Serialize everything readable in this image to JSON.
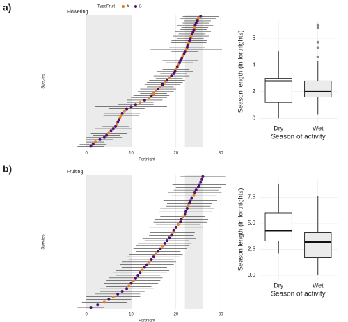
{
  "chart_data": [
    {
      "type": "dotrange",
      "panel_label": "a)",
      "title": "Flowering",
      "xlabel": "Fortnight",
      "ylabel": "Species",
      "legend_title": "TypeFruit",
      "series": [
        {
          "name": "A",
          "color": "#e8801e"
        },
        {
          "name": "B",
          "color": "#4b1168"
        }
      ],
      "xlim": [
        -5,
        32
      ],
      "xticks": [
        0,
        10,
        20,
        30
      ],
      "bands": [
        [
          0,
          10
        ],
        [
          22,
          26
        ]
      ],
      "grid": true,
      "categories": [
        null,
        null,
        null,
        null,
        null,
        null,
        null,
        null,
        null,
        null,
        null,
        null,
        null,
        null,
        null,
        null,
        null,
        null,
        null,
        null,
        null,
        null,
        null,
        null,
        null,
        null,
        null,
        null,
        null,
        null,
        null,
        null,
        null,
        null,
        null,
        null,
        null,
        null,
        null,
        null,
        null,
        null,
        null,
        null,
        null,
        null,
        null,
        null,
        null,
        null,
        null,
        null,
        null,
        null,
        null,
        null,
        null,
        null,
        null,
        null
      ],
      "values": [
        25.5,
        25,
        24.8,
        24.5,
        24.3,
        24.2,
        24,
        23.8,
        23.6,
        23.4,
        23.2,
        23,
        22.8,
        22.6,
        22.5,
        22.3,
        22,
        21.8,
        21.5,
        21.3,
        21,
        20.8,
        20.5,
        20.3,
        20,
        19.8,
        19.5,
        19,
        18.5,
        18,
        17.5,
        17,
        16.5,
        16,
        15.5,
        15,
        14.5,
        14,
        13,
        12,
        11,
        10,
        9,
        8.5,
        8,
        7.8,
        7.5,
        7.3,
        7,
        6.8,
        6.5,
        6,
        5.5,
        5,
        4.5,
        4,
        3,
        2,
        1.5,
        1
      ],
      "errors": [
        4,
        4,
        3,
        3,
        4,
        3,
        3,
        4,
        3,
        4,
        3,
        4,
        4,
        3,
        4,
        8,
        3,
        4,
        4,
        3,
        4,
        3,
        4,
        3,
        3,
        4,
        3,
        4,
        3,
        4,
        4,
        4,
        3,
        4,
        4,
        3,
        4,
        4,
        4,
        3,
        4,
        8,
        4,
        3,
        4,
        4,
        3,
        4,
        4,
        4,
        3,
        4,
        4,
        4,
        3,
        4,
        3,
        2,
        3,
        3
      ],
      "group": [
        1,
        0,
        1,
        1,
        1,
        0,
        1,
        1,
        1,
        0,
        1,
        1,
        0,
        1,
        1,
        0,
        1,
        1,
        0,
        1,
        1,
        1,
        0,
        1,
        0,
        1,
        1,
        1,
        0,
        1,
        0,
        1,
        0,
        1,
        0,
        0,
        1,
        0,
        1,
        0,
        1,
        1,
        1,
        0,
        1,
        0,
        0,
        1,
        1,
        0,
        1,
        1,
        1,
        0,
        1,
        1,
        1,
        0,
        1,
        1
      ]
    },
    {
      "type": "box",
      "xlabel": "Season of activity",
      "ylabel": "Season length (in fortnights)",
      "categories": [
        "Dry",
        "Wet"
      ],
      "colors": [
        "#ffffff",
        "#ebebeb"
      ],
      "ylim": [
        -0.3,
        7.3
      ],
      "yticks": [
        0,
        2,
        4,
        6
      ],
      "grid": true,
      "min": [
        0,
        0.3
      ],
      "q1": [
        1.2,
        1.6
      ],
      "median": [
        2.8,
        2
      ],
      "q3": [
        3,
        2.8
      ],
      "max": [
        5,
        4.3
      ],
      "outliers": [
        [],
        [
          7,
          6.8,
          5.7,
          5.3,
          4.6
        ]
      ]
    },
    {
      "type": "dotrange",
      "panel_label": "b)",
      "title": "Fruiting",
      "xlabel": "Fortnight",
      "ylabel": "Species",
      "series": [
        {
          "name": "A",
          "color": "#e8801e"
        },
        {
          "name": "B",
          "color": "#4b1168"
        }
      ],
      "xlim": [
        -5,
        32
      ],
      "xticks": [
        0,
        10,
        20,
        30
      ],
      "bands": [
        [
          0,
          10
        ],
        [
          22,
          26
        ]
      ],
      "grid": true,
      "categories": [
        null,
        null,
        null,
        null,
        null,
        null,
        null,
        null,
        null,
        null,
        null,
        null,
        null,
        null,
        null,
        null,
        null,
        null,
        null,
        null,
        null,
        null,
        null,
        null,
        null,
        null,
        null,
        null,
        null,
        null,
        null,
        null,
        null,
        null,
        null,
        null,
        null,
        null,
        null,
        null,
        null,
        null,
        null,
        null,
        null,
        null,
        null,
        null,
        null,
        null
      ],
      "values": [
        26,
        25.8,
        25.5,
        25.2,
        25,
        24.5,
        24.2,
        24,
        23.5,
        23.2,
        23,
        22.7,
        22.5,
        22.2,
        22,
        21.5,
        21.2,
        21,
        20.5,
        20,
        19.5,
        19.2,
        19,
        18.5,
        18,
        17.5,
        17,
        16.5,
        16,
        15.5,
        15,
        14.5,
        14,
        13.5,
        13,
        12.5,
        12,
        11.5,
        11,
        10.5,
        10,
        9.5,
        9,
        8,
        7,
        6,
        5,
        4,
        2.5,
        1
      ],
      "errors": [
        5,
        5,
        5,
        6,
        5,
        5,
        6,
        5,
        5,
        6,
        5,
        5,
        6,
        6,
        5,
        5,
        6,
        6,
        5,
        6,
        6,
        5,
        5,
        6,
        5,
        6,
        6,
        6,
        5,
        6,
        6,
        5,
        6,
        6,
        5,
        6,
        6,
        5,
        6,
        6,
        6,
        5,
        6,
        5,
        5,
        6,
        5,
        5,
        3,
        3
      ],
      "group": [
        1,
        1,
        1,
        1,
        1,
        1,
        1,
        0,
        1,
        1,
        1,
        0,
        1,
        1,
        1,
        0,
        1,
        1,
        0,
        1,
        1,
        0,
        1,
        1,
        1,
        1,
        0,
        1,
        1,
        0,
        1,
        1,
        0,
        1,
        1,
        0,
        1,
        1,
        1,
        0,
        1,
        0,
        1,
        1,
        1,
        0,
        1,
        0,
        1,
        1
      ]
    },
    {
      "type": "box",
      "xlabel": "Season of activity",
      "ylabel": "Season length (in fortnights)",
      "categories": [
        "Dry",
        "Wet"
      ],
      "colors": [
        "#ffffff",
        "#ebebeb"
      ],
      "ylim": [
        -0.4,
        9.2
      ],
      "yticks": [
        {
          "value": 0,
          "label": "0.0"
        },
        {
          "value": 2.5,
          "label": "2.5"
        },
        {
          "value": 5,
          "label": "5.0"
        },
        {
          "value": 7.5,
          "label": "7.5"
        }
      ],
      "grid": true,
      "min": [
        2.1,
        0
      ],
      "q1": [
        3.3,
        1.7
      ],
      "median": [
        4.3,
        3.2
      ],
      "q3": [
        6,
        4.1
      ],
      "max": [
        8.8,
        7.6
      ],
      "outliers": [
        [],
        []
      ]
    }
  ]
}
